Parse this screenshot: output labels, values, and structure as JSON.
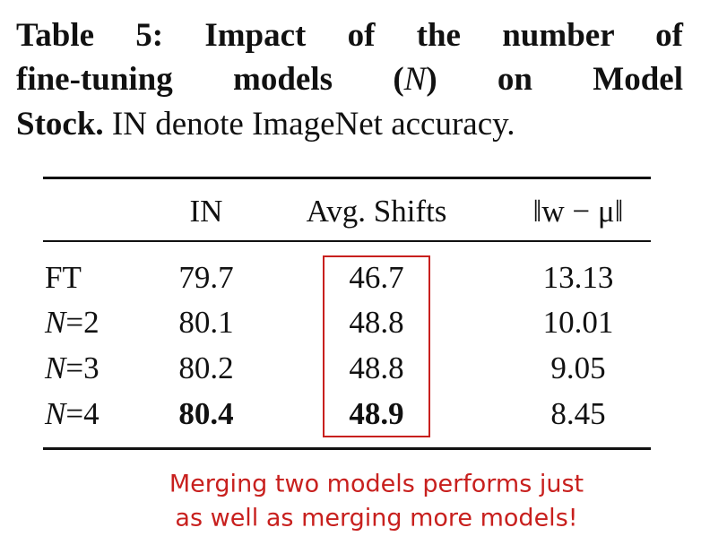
{
  "caption": {
    "line1": "Table 5: Impact of the number of",
    "line2a": "fine-tuning models (",
    "line2b": "N",
    "line2c": ") on Model",
    "line3a": "Stock.",
    "line3b": "IN denote ImageNet accuracy."
  },
  "table": {
    "headers": [
      "IN",
      "Avg. Shifts",
      "‖w − μ‖"
    ],
    "rows": [
      {
        "symbol": "FT",
        "values": [
          79.7,
          46.7,
          13.13
        ]
      },
      {
        "symbol": "N",
        "suffix": "=2",
        "values": [
          80.1,
          48.8,
          10.01
        ]
      },
      {
        "symbol": "N",
        "suffix": "=3",
        "values": [
          80.2,
          48.8,
          9.05
        ]
      },
      {
        "symbol": "N",
        "suffix": "=4",
        "values": [
          80.4,
          48.9,
          8.45
        ],
        "bold": [
          0,
          1
        ]
      }
    ],
    "highlight_column": 1,
    "highlight_color": "#c8201e"
  },
  "annotation": {
    "lines": [
      "Merging two models performs just",
      "as well as merging more models!"
    ],
    "color": "#c8201e"
  }
}
